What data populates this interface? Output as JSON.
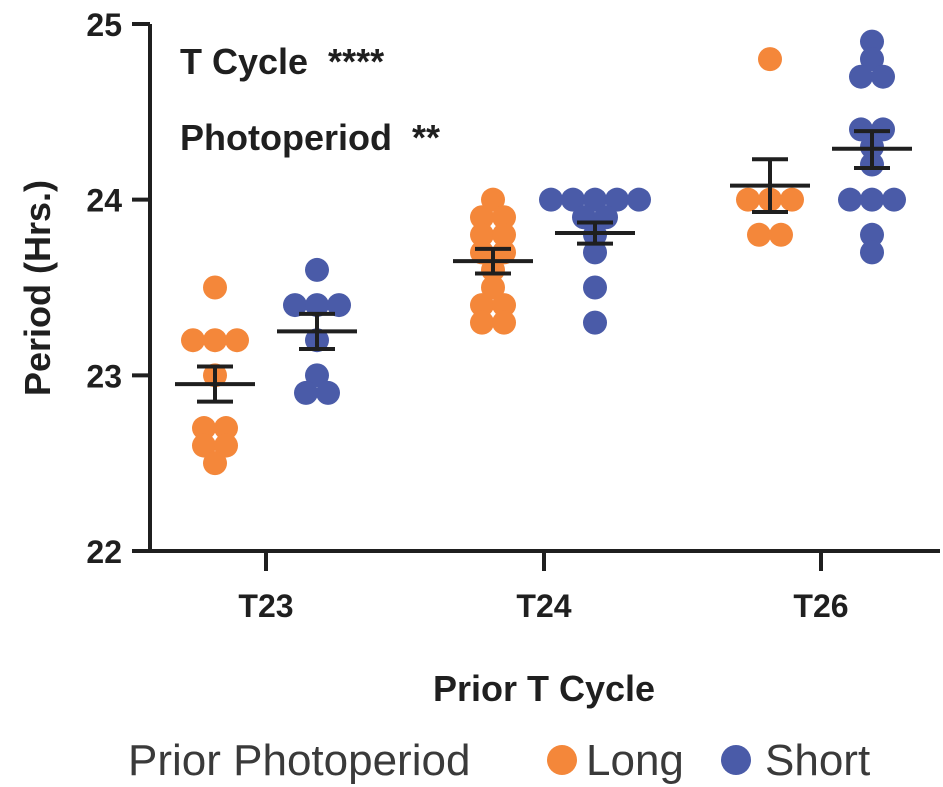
{
  "chart_data": {
    "type": "scatter",
    "xlabel": "Prior T Cycle",
    "ylabel": "Period (Hrs.)",
    "ylim": [
      22,
      25
    ],
    "yticks": [
      22,
      23,
      24,
      25
    ],
    "categories": [
      "T23",
      "T24",
      "T26"
    ],
    "annotations": [
      "T Cycle  ****",
      "Photoperiod  **"
    ],
    "legend": {
      "title": "Prior Photoperiod",
      "position": "bottom"
    },
    "grid": false,
    "series": [
      {
        "name": "Long",
        "color": "#F4873A",
        "groups": [
          {
            "category": "T23",
            "points": [
              23.5,
              23.2,
              23.2,
              23.2,
              23.0,
              22.7,
              22.7,
              22.6,
              22.6,
              22.5
            ],
            "mean": 22.95,
            "sem_low": 22.85,
            "sem_high": 23.05
          },
          {
            "category": "T24",
            "points": [
              24.0,
              23.9,
              23.9,
              23.8,
              23.8,
              23.7,
              23.7,
              23.6,
              23.5,
              23.4,
              23.4,
              23.3,
              23.3
            ],
            "mean": 23.65,
            "sem_low": 23.58,
            "sem_high": 23.72
          },
          {
            "category": "T26",
            "points": [
              24.8,
              24.0,
              24.0,
              24.0,
              23.8,
              23.8
            ],
            "mean": 24.08,
            "sem_low": 23.93,
            "sem_high": 24.23
          }
        ]
      },
      {
        "name": "Short",
        "color": "#4A5BA8",
        "groups": [
          {
            "category": "T23",
            "points": [
              23.6,
              23.4,
              23.4,
              23.4,
              23.2,
              23.0,
              22.9,
              22.9
            ],
            "mean": 23.25,
            "sem_low": 23.15,
            "sem_high": 23.35
          },
          {
            "category": "T24",
            "points": [
              24.0,
              24.0,
              24.0,
              24.0,
              24.0,
              23.9,
              23.9,
              23.8,
              23.7,
              23.5,
              23.3
            ],
            "mean": 23.81,
            "sem_low": 23.75,
            "sem_high": 23.87
          },
          {
            "category": "T26",
            "points": [
              24.9,
              24.8,
              24.7,
              24.7,
              24.4,
              24.4,
              24.3,
              24.2,
              24.0,
              24.0,
              24.0,
              23.8,
              23.7
            ],
            "mean": 24.29,
            "sem_low": 24.18,
            "sem_high": 24.39
          }
        ]
      }
    ]
  }
}
